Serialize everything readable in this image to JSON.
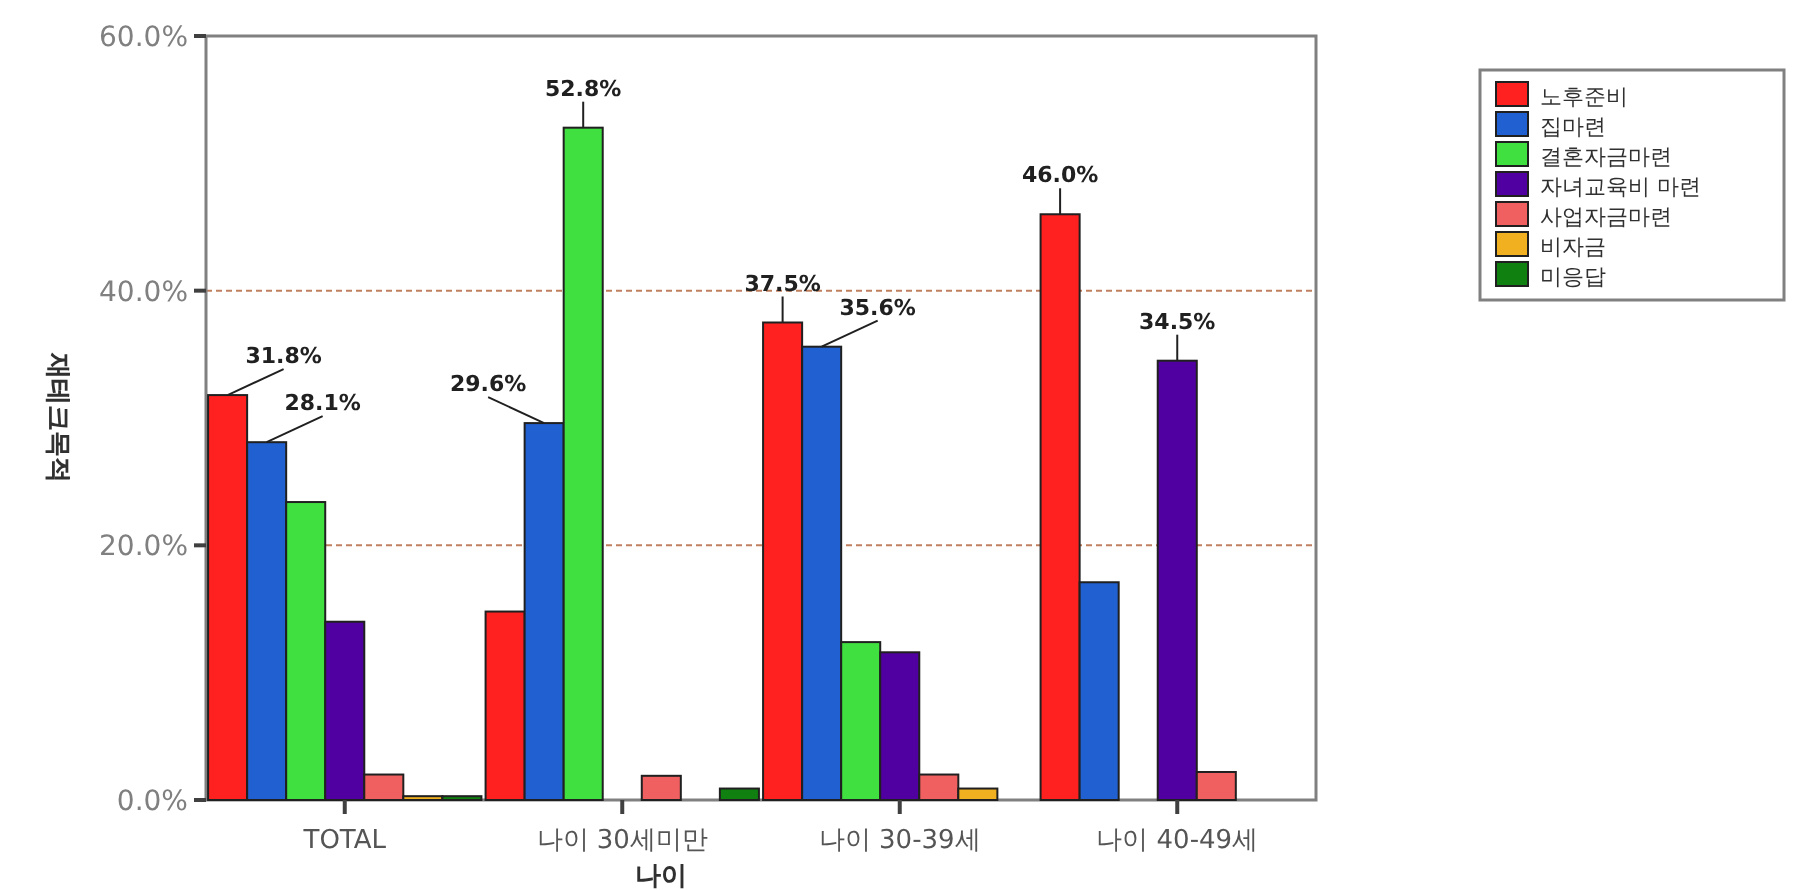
{
  "chart_data": {
    "type": "bar",
    "ylabel": "재테크목적",
    "xlabel": "나이",
    "categories": [
      "TOTAL",
      "나이 30세미만",
      "나이 30-39세",
      "나이 40-49세"
    ],
    "ylim": [
      0,
      60
    ],
    "yticks": [
      {
        "value": 0,
        "label": "0.0%"
      },
      {
        "value": 20,
        "label": "20.0%"
      },
      {
        "value": 40,
        "label": "40.0%"
      },
      {
        "value": 60,
        "label": "60.0%"
      }
    ],
    "grid": "y",
    "legend": "top right",
    "series": [
      {
        "name": "노후준비",
        "color": "#ff2020",
        "values": [
          31.8,
          14.8,
          37.5,
          46.0
        ],
        "value_labels": [
          "31.8%",
          null,
          "37.5%",
          "46.0%"
        ]
      },
      {
        "name": "집마련",
        "color": "#2060d0",
        "values": [
          28.1,
          29.6,
          35.6,
          17.1
        ],
        "value_labels": [
          "28.1%",
          "29.6%",
          "35.6%",
          null
        ]
      },
      {
        "name": "결혼자금마련",
        "color": "#40e040",
        "values": [
          23.4,
          52.8,
          12.4,
          0
        ],
        "value_labels": [
          null,
          "52.8%",
          null,
          null
        ]
      },
      {
        "name": "자녀교육비 마련",
        "color": "#5000a0",
        "values": [
          14.0,
          0,
          11.6,
          34.5
        ],
        "value_labels": [
          null,
          null,
          null,
          "34.5%"
        ]
      },
      {
        "name": "사업자금마련",
        "color": "#f06060",
        "values": [
          2.0,
          1.9,
          2.0,
          2.2
        ]
      },
      {
        "name": "비자금",
        "color": "#f0b020",
        "values": [
          0.3,
          0,
          0.9,
          0
        ]
      },
      {
        "name": "미응답",
        "color": "#108010",
        "values": [
          0.3,
          0.9,
          0,
          0
        ]
      }
    ]
  }
}
